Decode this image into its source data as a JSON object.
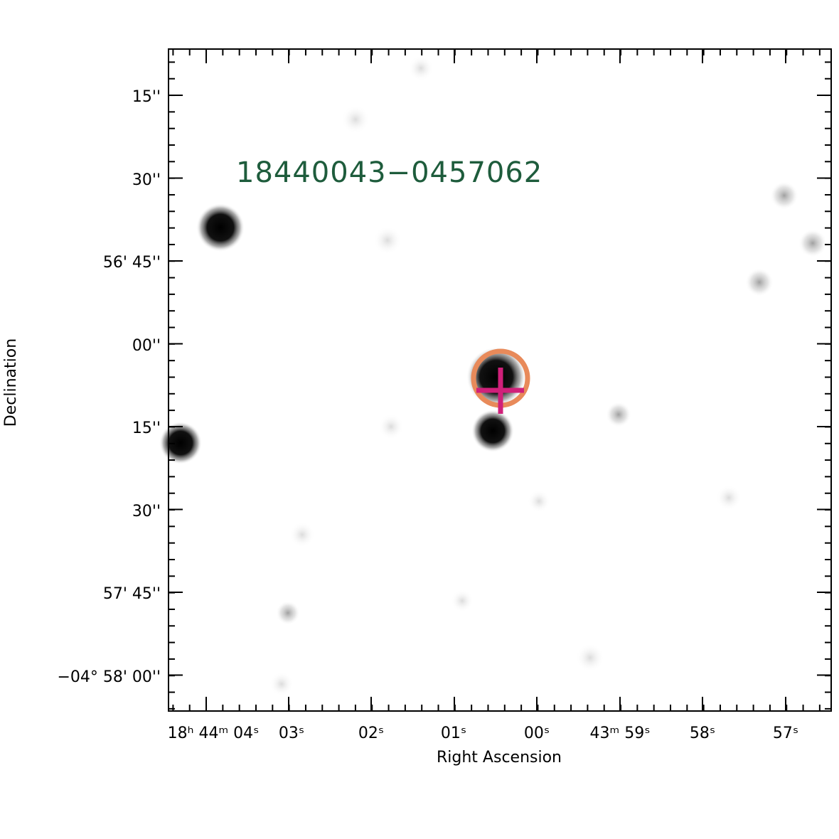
{
  "image": {
    "source_label": "18440043−0457062",
    "source_label_color": "#1e5c3c",
    "aperture_color": "#e88a5a",
    "marker_color": "#d0207a",
    "stars": [
      {
        "name": "star-upper-left",
        "weight": "bright"
      },
      {
        "name": "star-left-edge",
        "weight": "bright"
      },
      {
        "name": "star-target",
        "weight": "bright"
      },
      {
        "name": "star-below-target",
        "weight": "bright"
      },
      {
        "name": "star-faint",
        "weight": "faint"
      }
    ]
  },
  "axes": {
    "xlabel": "Right Ascension",
    "ylabel": "Declination",
    "y_ticks": [
      {
        "label": "15''"
      },
      {
        "label": "30''"
      },
      {
        "label": "56' 45''"
      },
      {
        "label": "00''"
      },
      {
        "label": "15''"
      },
      {
        "label": "30''"
      },
      {
        "label": "57' 45''"
      },
      {
        "label": "−04° 58' 00''"
      }
    ],
    "x_ticks": [
      {
        "label": "18ʰ 44ᵐ 04ˢ"
      },
      {
        "label": "03ˢ"
      },
      {
        "label": "02ˢ"
      },
      {
        "label": "01ˢ"
      },
      {
        "label": "00ˢ"
      },
      {
        "label": "43ᵐ 59ˢ"
      },
      {
        "label": "58ˢ"
      },
      {
        "label": "57ˢ"
      }
    ]
  }
}
